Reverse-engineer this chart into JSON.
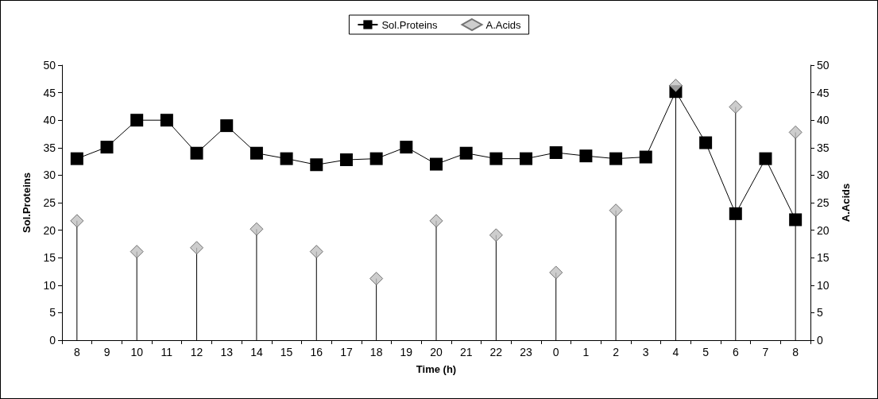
{
  "chart_data": {
    "type": "line",
    "xlabel": "Time (h)",
    "ylabel": "Sol.Proteins",
    "y2label": "A.Acids",
    "categories": [
      "8",
      "9",
      "10",
      "11",
      "12",
      "13",
      "14",
      "15",
      "16",
      "17",
      "18",
      "19",
      "20",
      "21",
      "22",
      "23",
      "0",
      "1",
      "2",
      "3",
      "4",
      "5",
      "6",
      "7",
      "8"
    ],
    "series": [
      {
        "name": "Sol.Proteins",
        "color": "#000000",
        "marker": "square",
        "values": [
          33,
          35.1,
          40,
          40,
          34,
          39,
          34,
          33,
          31.9,
          32.8,
          33,
          35.1,
          32,
          34,
          33,
          33,
          34.1,
          33.5,
          33,
          33.3,
          45.2,
          35.9,
          23,
          33,
          21.9
        ]
      },
      {
        "name": "A.Acids",
        "type": "lollipop",
        "axis": "y2",
        "color": "#c0c0c0",
        "marker": "diamond",
        "values": [
          21.7,
          null,
          16.1,
          null,
          16.8,
          null,
          20.2,
          null,
          16.1,
          null,
          11.2,
          null,
          21.7,
          null,
          19.1,
          null,
          12.3,
          null,
          23.6,
          null,
          46.3,
          null,
          42.4,
          null,
          37.8
        ]
      }
    ],
    "ylim": [
      0,
      50
    ],
    "yticks": [
      0,
      5,
      10,
      15,
      20,
      25,
      30,
      35,
      40,
      45,
      50
    ],
    "y2lim": [
      0,
      50
    ],
    "y2ticks": [
      0,
      5,
      10,
      15,
      20,
      25,
      30,
      35,
      40,
      45,
      50
    ],
    "grid": false,
    "legend": "top"
  }
}
